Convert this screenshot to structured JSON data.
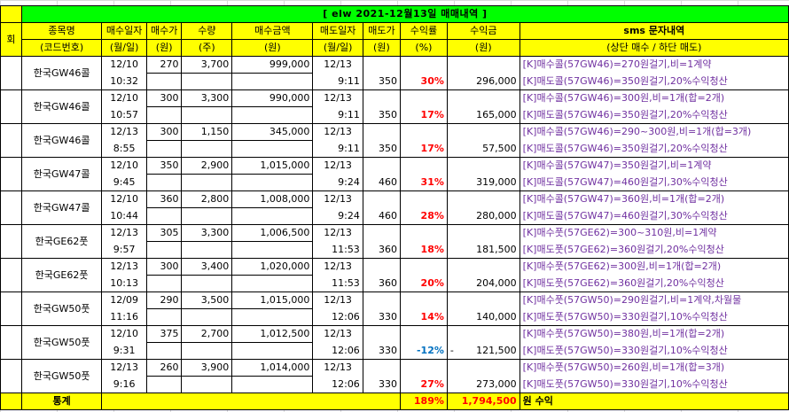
{
  "title": "[ elw 2021-12월13일  매매내역 ]",
  "headers": {
    "row1": [
      "회",
      "종목명",
      "매수일자",
      "매수가",
      "수량",
      "매수금액",
      "매도일자",
      "매도가",
      "수익률",
      "수익금",
      "sms 문자내역"
    ],
    "row2": [
      "(코드번호)",
      "(월/일)",
      "(원)",
      "(주)",
      "(원)",
      "(월/일)",
      "(원)",
      "(%)",
      "(원)",
      "(상단 매수 / 하단 매도)"
    ]
  },
  "trades": [
    {
      "name": "한국GW46콜",
      "buy_date": "12/10",
      "buy_time": "10:32",
      "buy_price": "270",
      "qty": "3,700",
      "buy_amount": "999,000",
      "sell_date": "12/13",
      "sell_time": "9:11",
      "sell_price": "350",
      "rate": "30%",
      "profit": "296,000",
      "profit_prefix": "",
      "rate_color": "red",
      "sms_buy": "[K]매수콜(57GW46)=270원걸기,비=1계약",
      "sms_sell": "[K]매도콜(57GW46)=350원걸기,20%수익청산"
    },
    {
      "name": "한국GW46콜",
      "buy_date": "12/10",
      "buy_time": "10:57",
      "buy_price": "300",
      "qty": "3,300",
      "buy_amount": "990,000",
      "sell_date": "12/13",
      "sell_time": "9:11",
      "sell_price": "350",
      "rate": "17%",
      "profit": "165,000",
      "profit_prefix": "",
      "rate_color": "red",
      "sms_buy": "[K]매수콜(57GW46)=300원,비=1개(합=2개)",
      "sms_sell": "[K]매도콜(57GW46)=350원걸기,20%수익청산"
    },
    {
      "name": "한국GW46콜",
      "buy_date": "12/13",
      "buy_time": "8:55",
      "buy_price": "300",
      "qty": "1,150",
      "buy_amount": "345,000",
      "sell_date": "12/13",
      "sell_time": "9:11",
      "sell_price": "350",
      "rate": "17%",
      "profit": "57,500",
      "profit_prefix": "",
      "rate_color": "red",
      "sms_buy": "[K]매수콜(57GW46)=290~300원,비=1개(합=3개)",
      "sms_sell": "[K]매도콜(57GW46)=350원걸기,20%수익청산"
    },
    {
      "name": "한국GW47콜",
      "buy_date": "12/10",
      "buy_time": "9:45",
      "buy_price": "350",
      "qty": "2,900",
      "buy_amount": "1,015,000",
      "sell_date": "12/13",
      "sell_time": "9:24",
      "sell_price": "460",
      "rate": "31%",
      "profit": "319,000",
      "profit_prefix": "",
      "rate_color": "red",
      "sms_buy": "[K]매수콜(57GW47)=350원걸기,비=1계약",
      "sms_sell": "[K]매도콜(57GW47)=460원걸기,30%수익청산"
    },
    {
      "name": "한국GW47콜",
      "buy_date": "12/10",
      "buy_time": "10:44",
      "buy_price": "360",
      "qty": "2,800",
      "buy_amount": "1,008,000",
      "sell_date": "12/13",
      "sell_time": "9:24",
      "sell_price": "460",
      "rate": "28%",
      "profit": "280,000",
      "profit_prefix": "",
      "rate_color": "red",
      "sms_buy": "[K]매수콜(57GW47)=360원,비=1개(합=2개)",
      "sms_sell": "[K]매도콜(57GW47)=460원걸기,30%수익청산"
    },
    {
      "name": "한국GE62풋",
      "buy_date": "12/13",
      "buy_time": "9:57",
      "buy_price": "305",
      "qty": "3,300",
      "buy_amount": "1,006,500",
      "sell_date": "12/13",
      "sell_time": "11:53",
      "sell_price": "360",
      "rate": "18%",
      "profit": "181,500",
      "profit_prefix": "",
      "rate_color": "red",
      "sms_buy": "[K]매수풋(57GE62)=300~310원,비=1계약",
      "sms_sell": "[K]매도풋(57GE62)=360원걸기,20%수익청산"
    },
    {
      "name": "한국GE62풋",
      "buy_date": "12/13",
      "buy_time": "10:13",
      "buy_price": "300",
      "qty": "3,400",
      "buy_amount": "1,020,000",
      "sell_date": "12/13",
      "sell_time": "11:53",
      "sell_price": "360",
      "rate": "20%",
      "profit": "204,000",
      "profit_prefix": "",
      "rate_color": "red",
      "sms_buy": "[K]매수풋(57GE62)=300원,비=1개(합=2개)",
      "sms_sell": "[K]매도풋(57GE62)=360원걸기,20%수익청산"
    },
    {
      "name": "한국GW50풋",
      "buy_date": "12/09",
      "buy_time": "11:16",
      "buy_price": "290",
      "qty": "3,500",
      "buy_amount": "1,015,000",
      "sell_date": "12/13",
      "sell_time": "12:06",
      "sell_price": "330",
      "rate": "14%",
      "profit": "140,000",
      "profit_prefix": "",
      "rate_color": "red",
      "sms_buy": "[K]매수풋(57GW50)=290원걸기,비=1계약,차월물",
      "sms_sell": "[K]매도풋(57GW50)=330원걸기,10%수익청산"
    },
    {
      "name": "한국GW50풋",
      "buy_date": "12/10",
      "buy_time": "9:31",
      "buy_price": "375",
      "qty": "2,700",
      "buy_amount": "1,012,500",
      "sell_date": "12/13",
      "sell_time": "12:06",
      "sell_price": "330",
      "rate": "-12%",
      "profit": "121,500",
      "profit_prefix": "-",
      "rate_color": "blue",
      "sms_buy": "[K]매수풋(57GW50)=380원,비=1개(합=2개)",
      "sms_sell": "[K]매도풋(57GW50)=330원걸기,10%수익청산"
    },
    {
      "name": "한국GW50풋",
      "buy_date": "12/13",
      "buy_time": "9:16",
      "buy_price": "260",
      "qty": "3,900",
      "buy_amount": "1,014,000",
      "sell_date": "12/13",
      "sell_time": "12:06",
      "sell_price": "330",
      "rate": "27%",
      "profit": "273,000",
      "profit_prefix": "",
      "rate_color": "red",
      "sms_buy": "[K]매수풋(57GW50)=260원,비=1개(합=3개)",
      "sms_sell": "[K]매도풋(57GW50)=330원걸기,10%수익청산"
    }
  ],
  "footer": {
    "label": "통계",
    "total_rate": "189%",
    "total_profit": "1,794,500",
    "suffix": "원 수익"
  },
  "colors": {
    "title_bg": "#00ff00",
    "header_bg": "#ffff00",
    "positive": "#ff0000",
    "negative": "#0070c0",
    "sms": "#7030a0"
  }
}
